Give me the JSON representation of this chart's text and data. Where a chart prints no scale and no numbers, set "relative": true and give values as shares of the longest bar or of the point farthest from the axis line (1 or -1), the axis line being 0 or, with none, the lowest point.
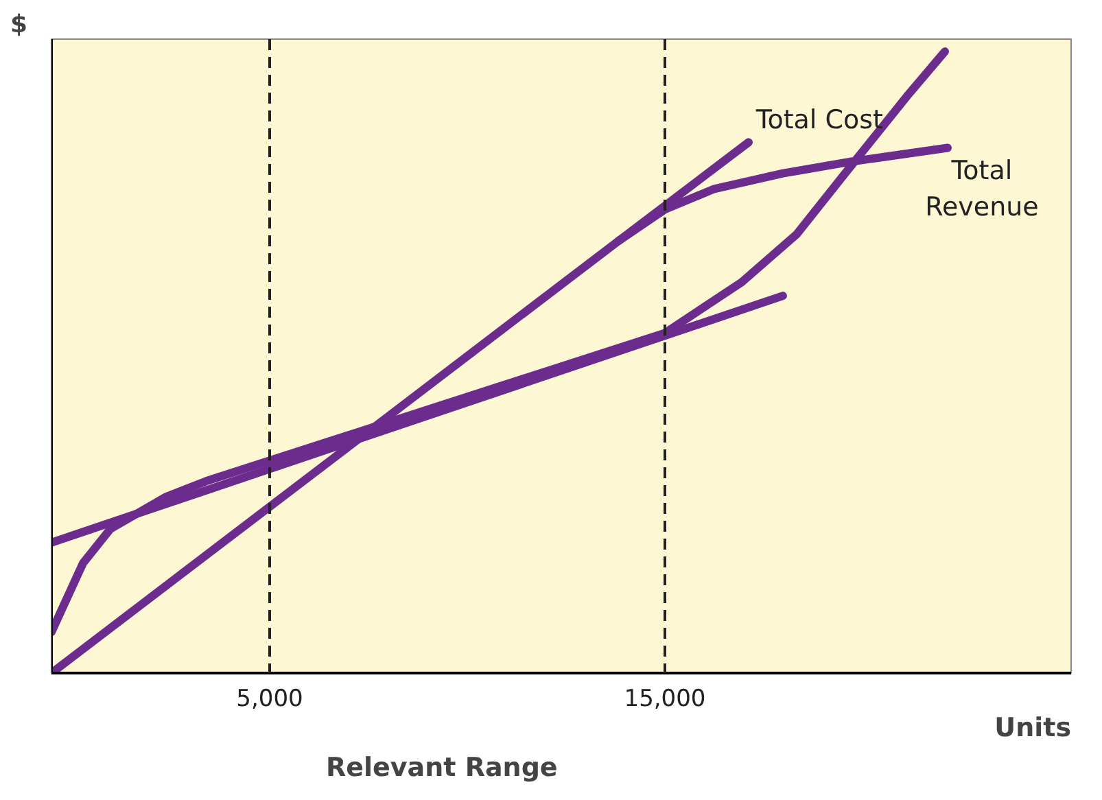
{
  "chart_data": {
    "type": "line",
    "relative": true,
    "xlabel": "Units",
    "ylabel": "$",
    "xlim": [
      -521,
      25278
    ],
    "xticks": [
      {
        "value": 5000,
        "label": "5,000"
      },
      {
        "value": 15000,
        "label": "15,000"
      }
    ],
    "series": [
      {
        "name": "Total Cost",
        "color": "#6b2c8e",
        "x": [
          -521,
          278,
          972,
          2361,
          3403,
          15000,
          16944,
          18333,
          19722,
          21111,
          22083
        ],
        "values": [
          0.066,
          0.177,
          0.232,
          0.283,
          0.309,
          0.547,
          0.629,
          0.706,
          0.817,
          0.927,
          1.0
        ]
      },
      {
        "name": "Total Revenue",
        "color": "#6b2c8e",
        "x": [
          -521,
          13819,
          15000,
          16250,
          17986,
          19722,
          22153
        ],
        "values": [
          0,
          0.695,
          0.746,
          0.779,
          0.804,
          0.823,
          0.845
        ]
      },
      {
        "color": "#6b2c8e",
        "x": [
          -521,
          17986
        ],
        "values": [
          0.21,
          0.607
        ]
      },
      {
        "color": "#6b2c8e",
        "x": [
          13819,
          17118
        ],
        "values": [
          0.695,
          0.854
        ]
      }
    ],
    "ref_lines": [
      {
        "axis": "x",
        "value": 5000,
        "color": "#222222",
        "line_style": "dashed"
      },
      {
        "axis": "x",
        "value": 15000,
        "color": "#222222",
        "line_style": "dashed"
      }
    ],
    "annotations": [
      "Relevant Range"
    ],
    "grid": false,
    "marker": "none",
    "line_style": "solid"
  }
}
